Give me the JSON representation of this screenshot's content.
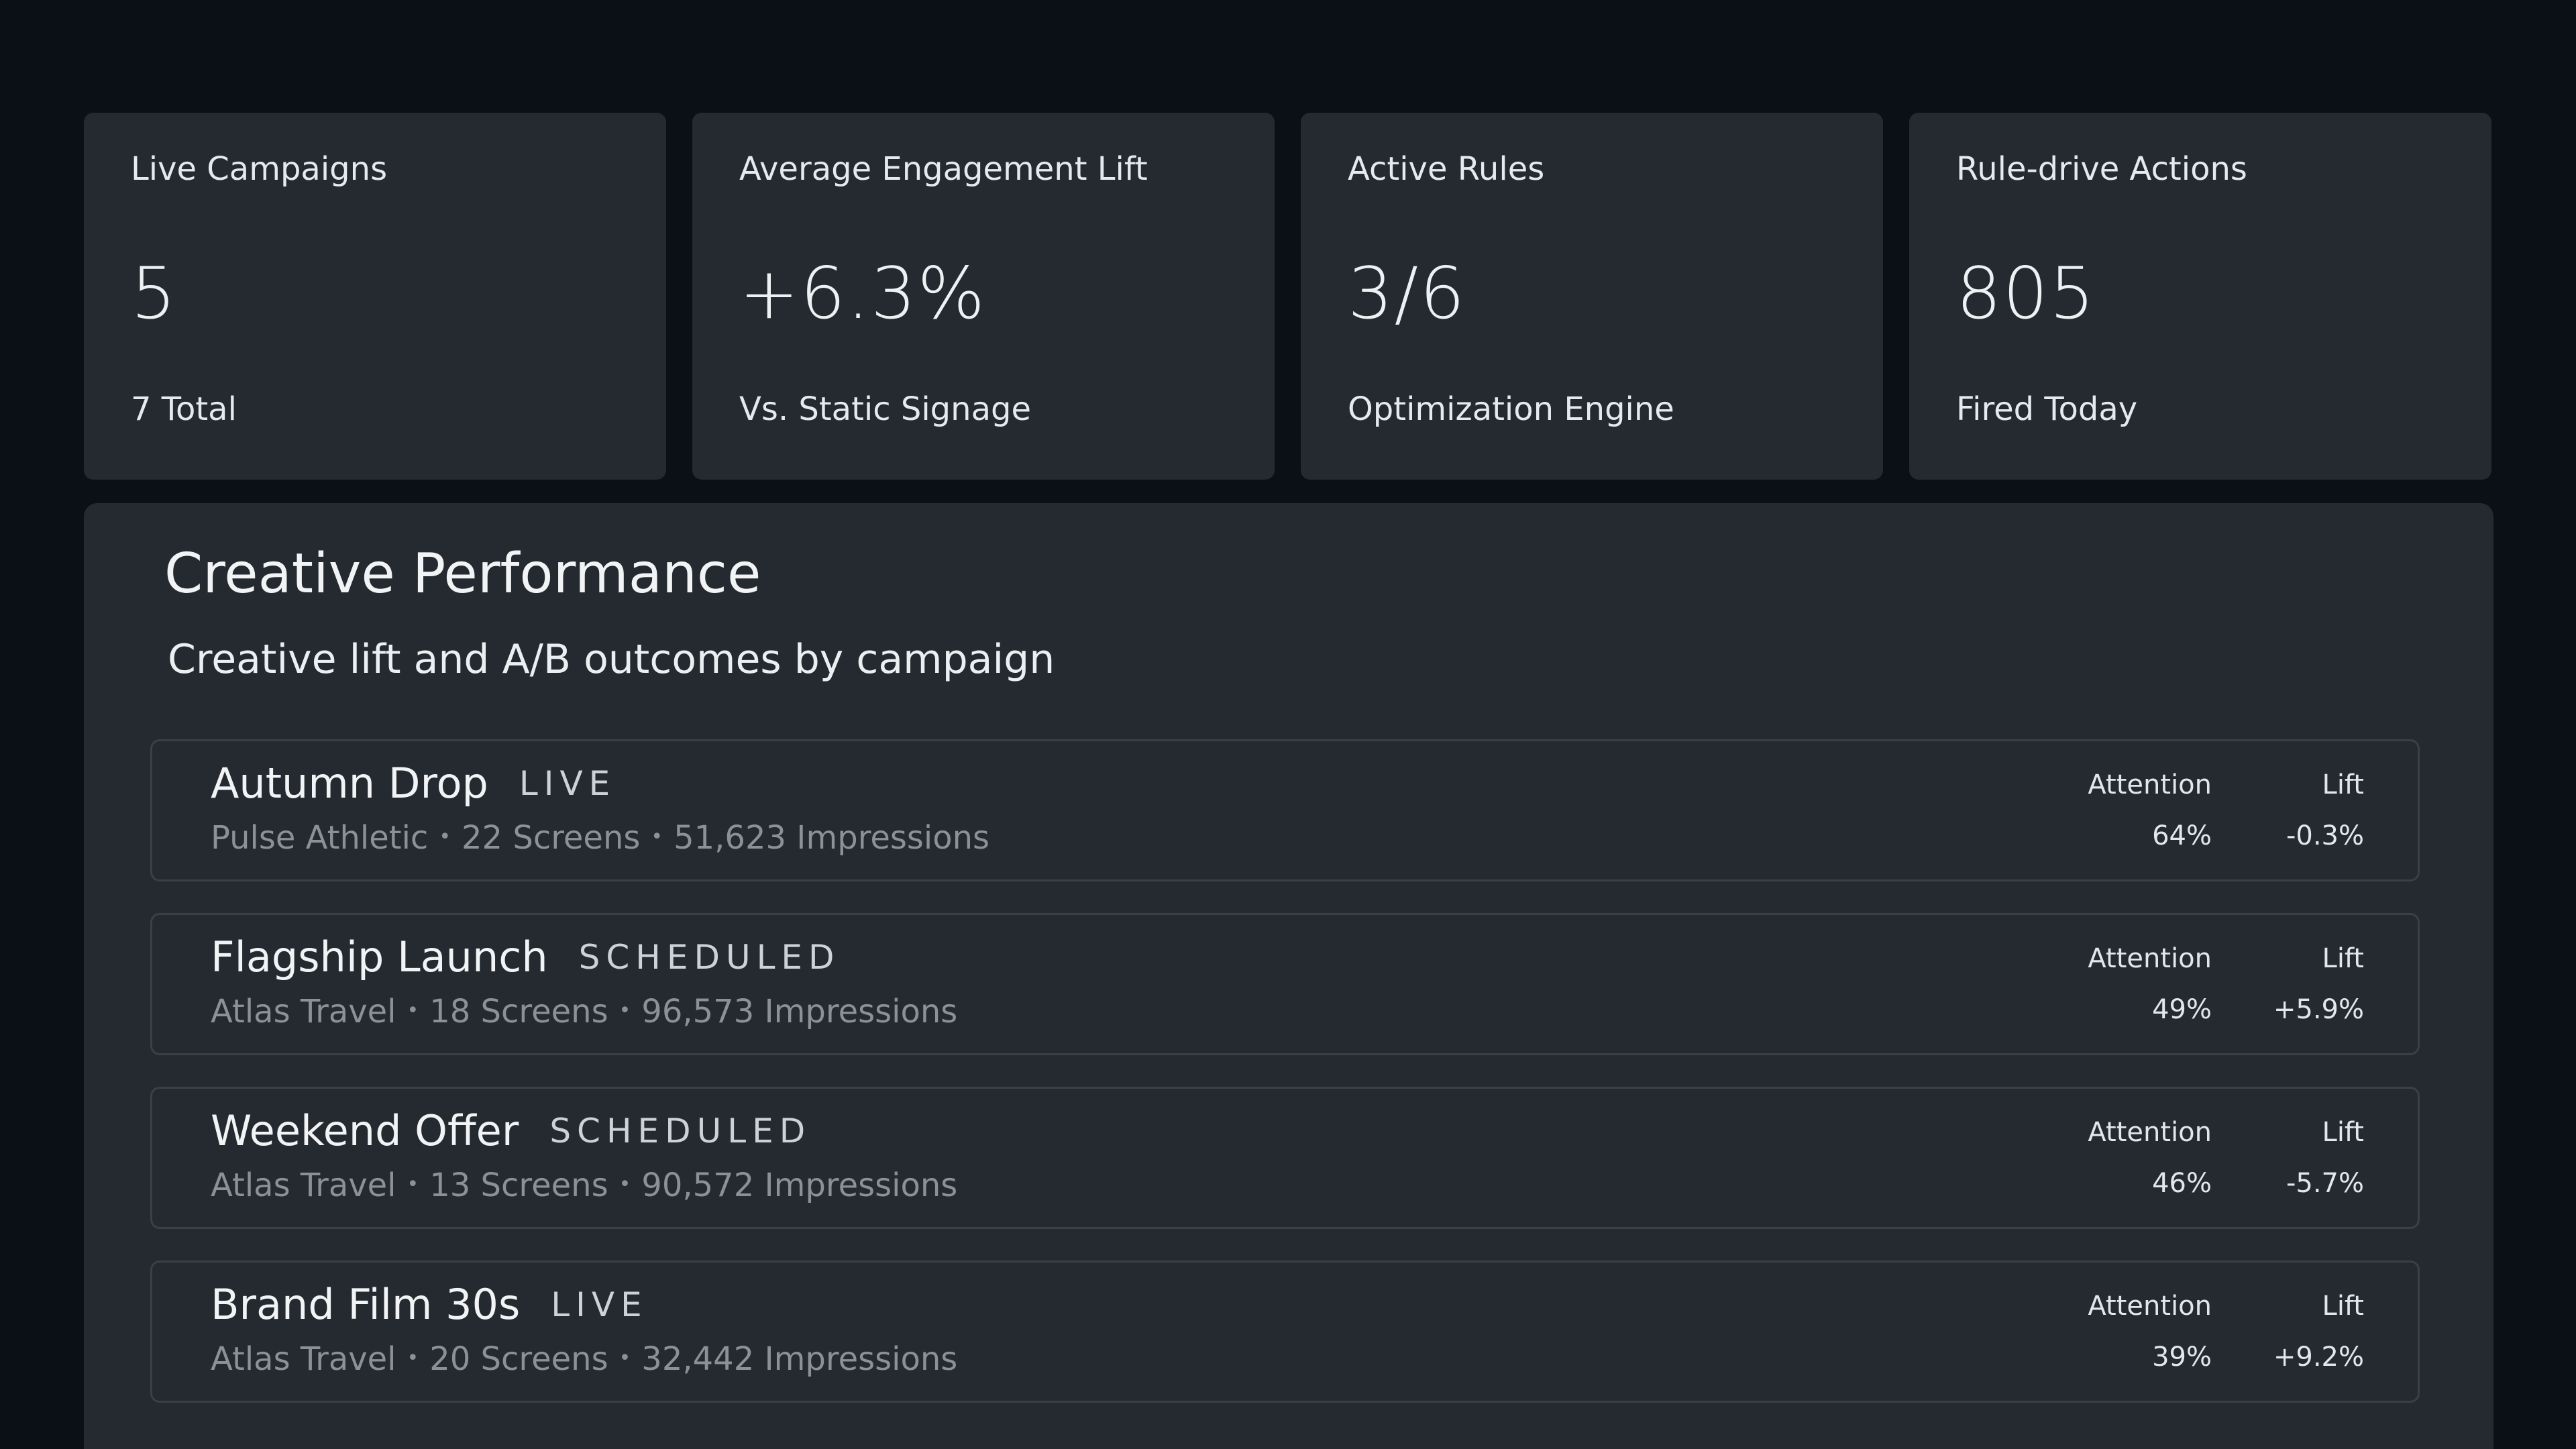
{
  "kpis": [
    {
      "label": "Live Campaigns",
      "value": "5",
      "sub": "7 Total"
    },
    {
      "label": "Average Engagement Lift",
      "value": "+6.3%",
      "sub": "Vs. Static Signage"
    },
    {
      "label": "Active Rules",
      "value": "3/6",
      "sub": "Optimization Engine"
    },
    {
      "label": "Rule-drive Actions",
      "value": "805",
      "sub": "Fired Today"
    }
  ],
  "panel": {
    "title": "Creative Performance",
    "subtitle": "Creative lift and A/B outcomes by campaign",
    "attention_label": "Attention",
    "lift_label": "Lift",
    "separator": "•",
    "campaigns": [
      {
        "name": "Autumn Drop",
        "status": "LIVE",
        "brand": "Pulse Athletic",
        "screens": "22 Screens",
        "impressions": "51,623 Impressions",
        "attention": "64%",
        "lift": "-0.3%"
      },
      {
        "name": "Flagship Launch",
        "status": "SCHEDULED",
        "brand": "Atlas Travel",
        "screens": "18 Screens",
        "impressions": "96,573 Impressions",
        "attention": "49%",
        "lift": "+5.9%"
      },
      {
        "name": "Weekend Offer",
        "status": "SCHEDULED",
        "brand": "Atlas Travel",
        "screens": "13 Screens",
        "impressions": "90,572 Impressions",
        "attention": "46%",
        "lift": "-5.7%"
      },
      {
        "name": "Brand Film 30s",
        "status": "LIVE",
        "brand": "Atlas Travel",
        "screens": "20 Screens",
        "impressions": "32,442 Impressions",
        "attention": "39%",
        "lift": "+9.2%"
      }
    ]
  },
  "colors": {
    "background": "#0b1017",
    "card": "#252a30",
    "row_border": "#3a4048",
    "muted_text": "#8b9199"
  }
}
